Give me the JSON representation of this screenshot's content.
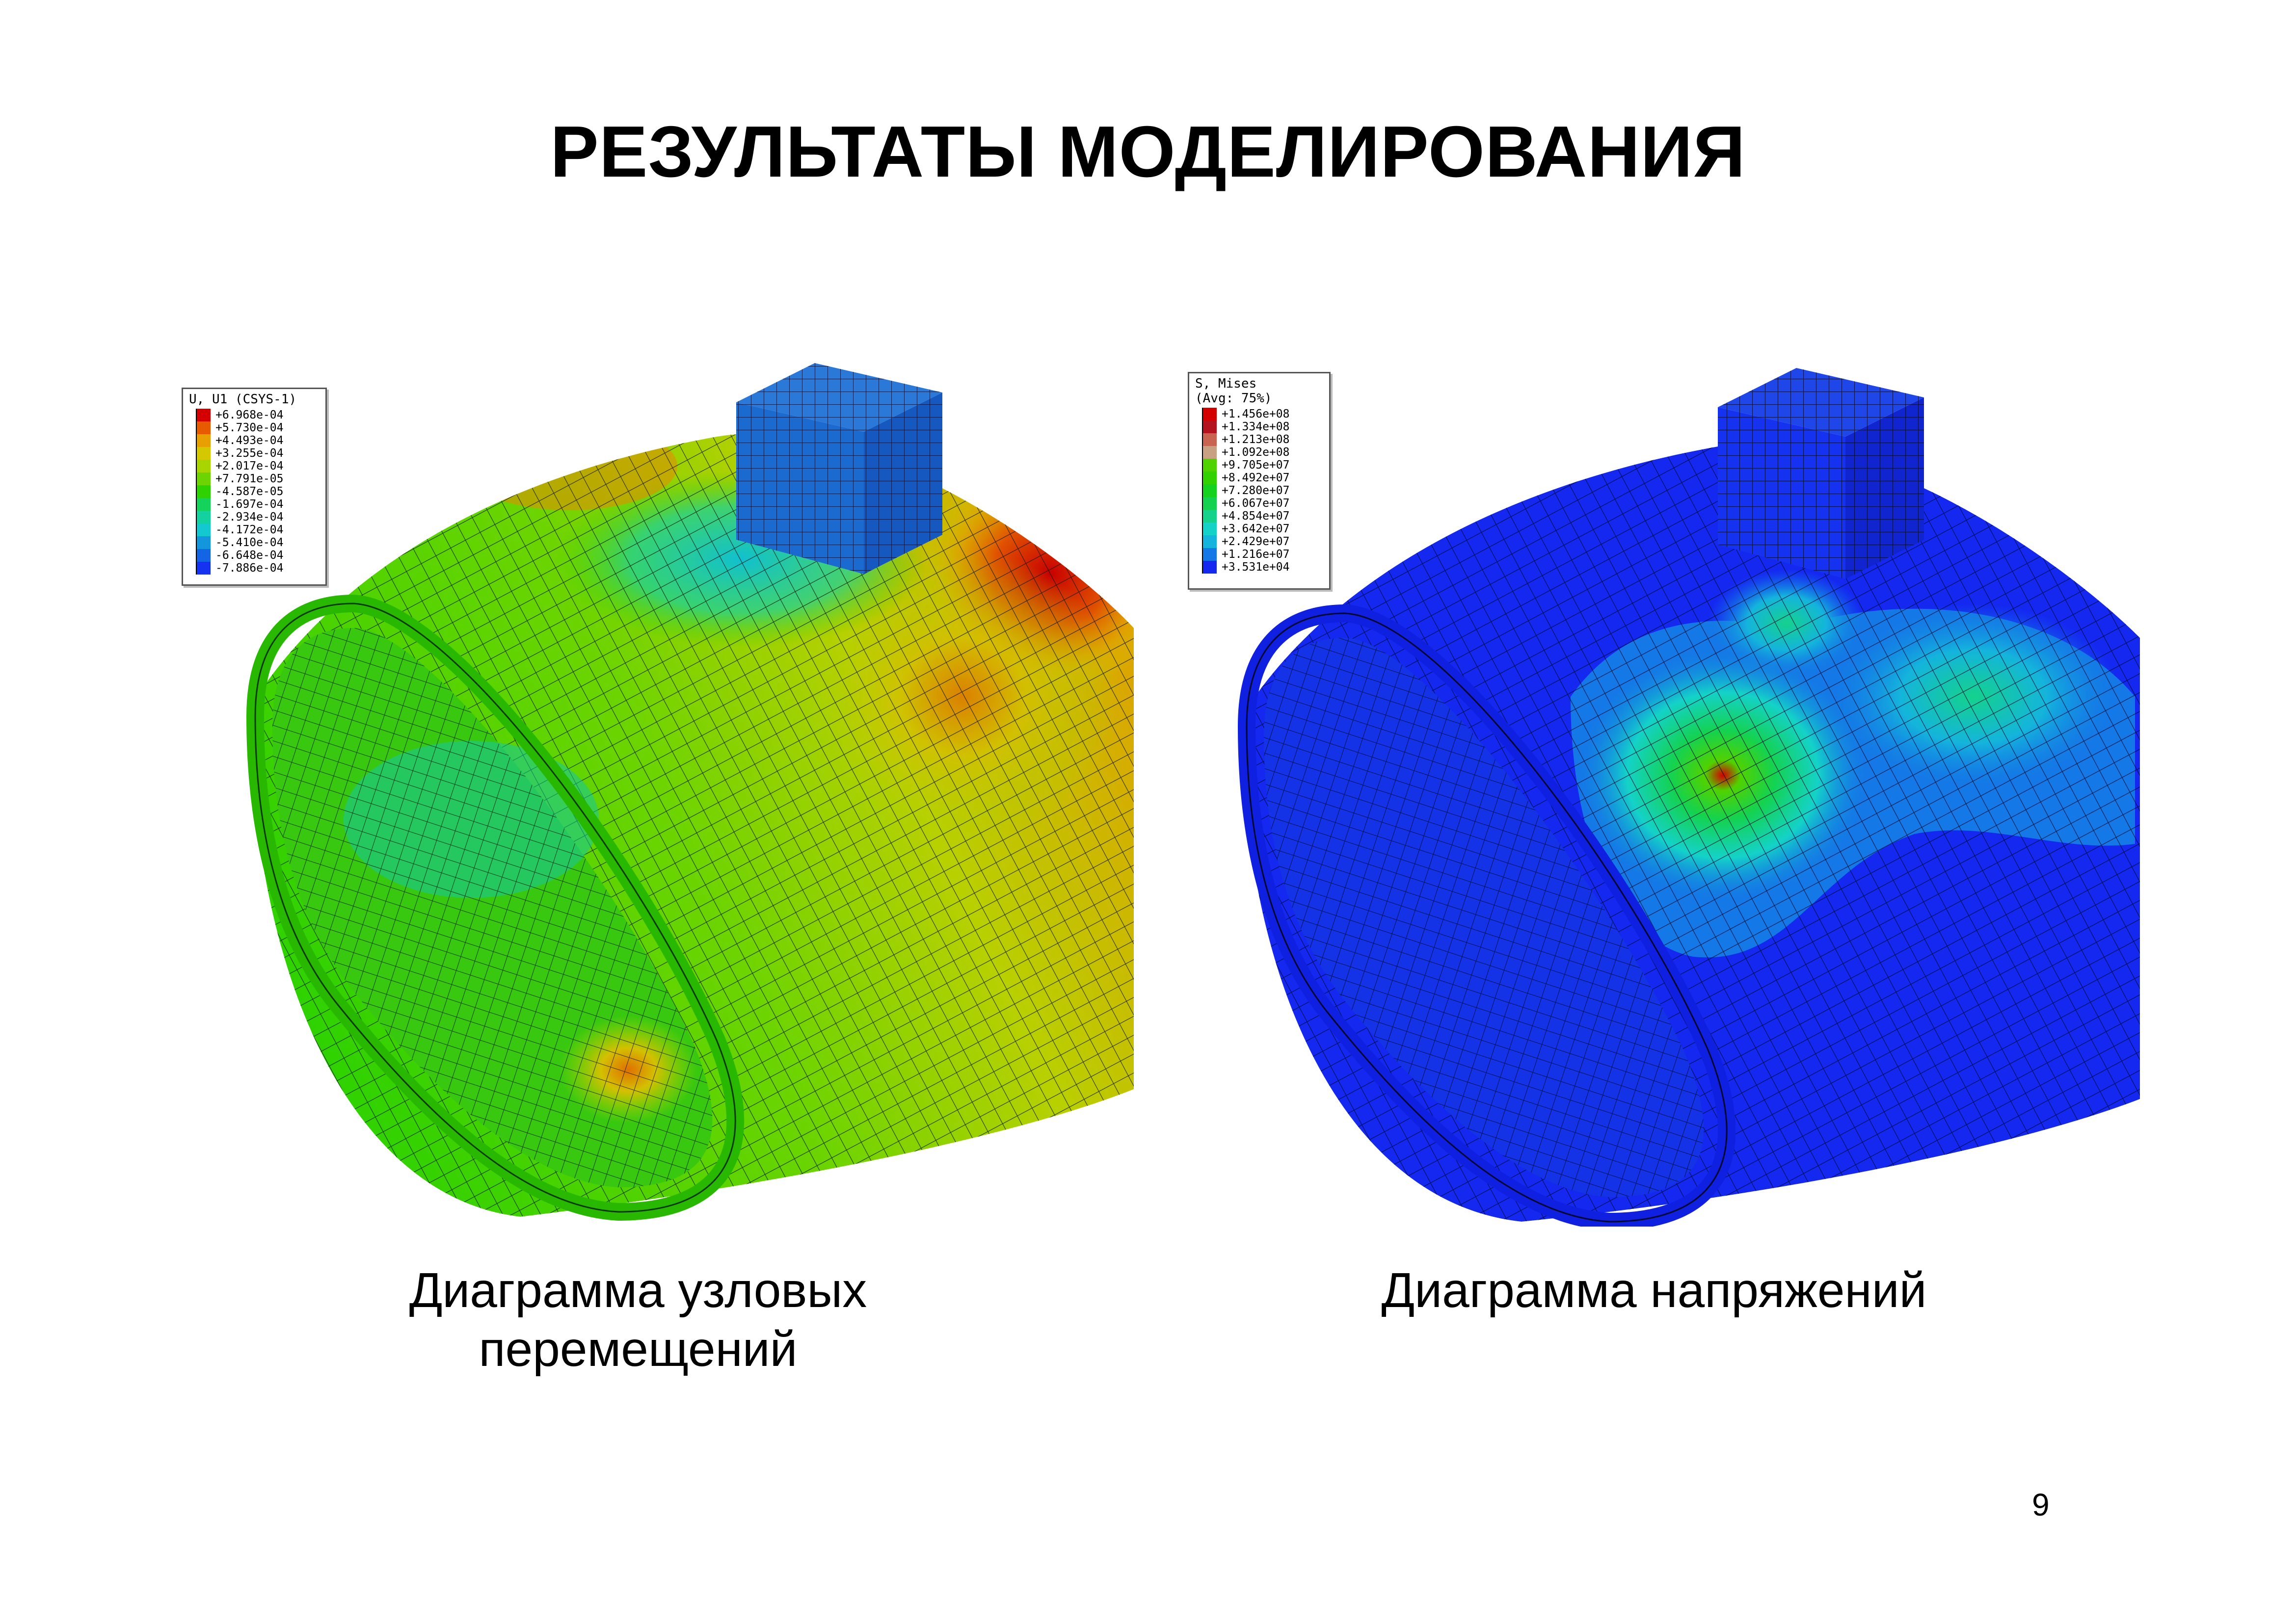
{
  "slide": {
    "title": "РЕЗУЛЬТАТЫ МОДЕЛИРОВАНИЯ",
    "page_number": "9"
  },
  "left_figure": {
    "caption": "Диаграмма узловых\nперемещений",
    "legend": {
      "title": "U, U1 (CSYS-1)",
      "entries": [
        {
          "value": "+6.968e-04",
          "color": "#d40000"
        },
        {
          "value": "+5.730e-04",
          "color": "#e85a00"
        },
        {
          "value": "+4.493e-04",
          "color": "#e8a000"
        },
        {
          "value": "+3.255e-04",
          "color": "#d4c800"
        },
        {
          "value": "+2.017e-04",
          "color": "#a8d400"
        },
        {
          "value": "+7.791e-05",
          "color": "#6cd400"
        },
        {
          "value": "-4.587e-05",
          "color": "#2ed200"
        },
        {
          "value": "-1.697e-04",
          "color": "#14d25a"
        },
        {
          "value": "-2.934e-04",
          "color": "#14d2a0"
        },
        {
          "value": "-4.172e-04",
          "color": "#14c8d2"
        },
        {
          "value": "-5.410e-04",
          "color": "#1496dc"
        },
        {
          "value": "-6.648e-04",
          "color": "#1464e6"
        },
        {
          "value": "-7.886e-04",
          "color": "#1432f0"
        }
      ]
    }
  },
  "right_figure": {
    "caption": "Диаграмма напряжений",
    "legend": {
      "title": "S, Mises\n(Avg: 75%)",
      "entries": [
        {
          "value": "+1.456e+08",
          "color": "#d40000"
        },
        {
          "value": "+1.334e+08",
          "color": "#b4141e"
        },
        {
          "value": "+1.213e+08",
          "color": "#c86450"
        },
        {
          "value": "+1.092e+08",
          "color": "#c8a082"
        },
        {
          "value": "+9.705e+07",
          "color": "#50d200"
        },
        {
          "value": "+8.492e+07",
          "color": "#32d200"
        },
        {
          "value": "+7.280e+07",
          "color": "#14d21e"
        },
        {
          "value": "+6.067e+07",
          "color": "#14d250"
        },
        {
          "value": "+4.854e+07",
          "color": "#14d28c"
        },
        {
          "value": "+3.642e+07",
          "color": "#14d2c8"
        },
        {
          "value": "+2.429e+07",
          "color": "#14b4dc"
        },
        {
          "value": "+1.216e+07",
          "color": "#1478e6"
        },
        {
          "value": "+3.531e+04",
          "color": "#1428f0"
        }
      ]
    }
  }
}
